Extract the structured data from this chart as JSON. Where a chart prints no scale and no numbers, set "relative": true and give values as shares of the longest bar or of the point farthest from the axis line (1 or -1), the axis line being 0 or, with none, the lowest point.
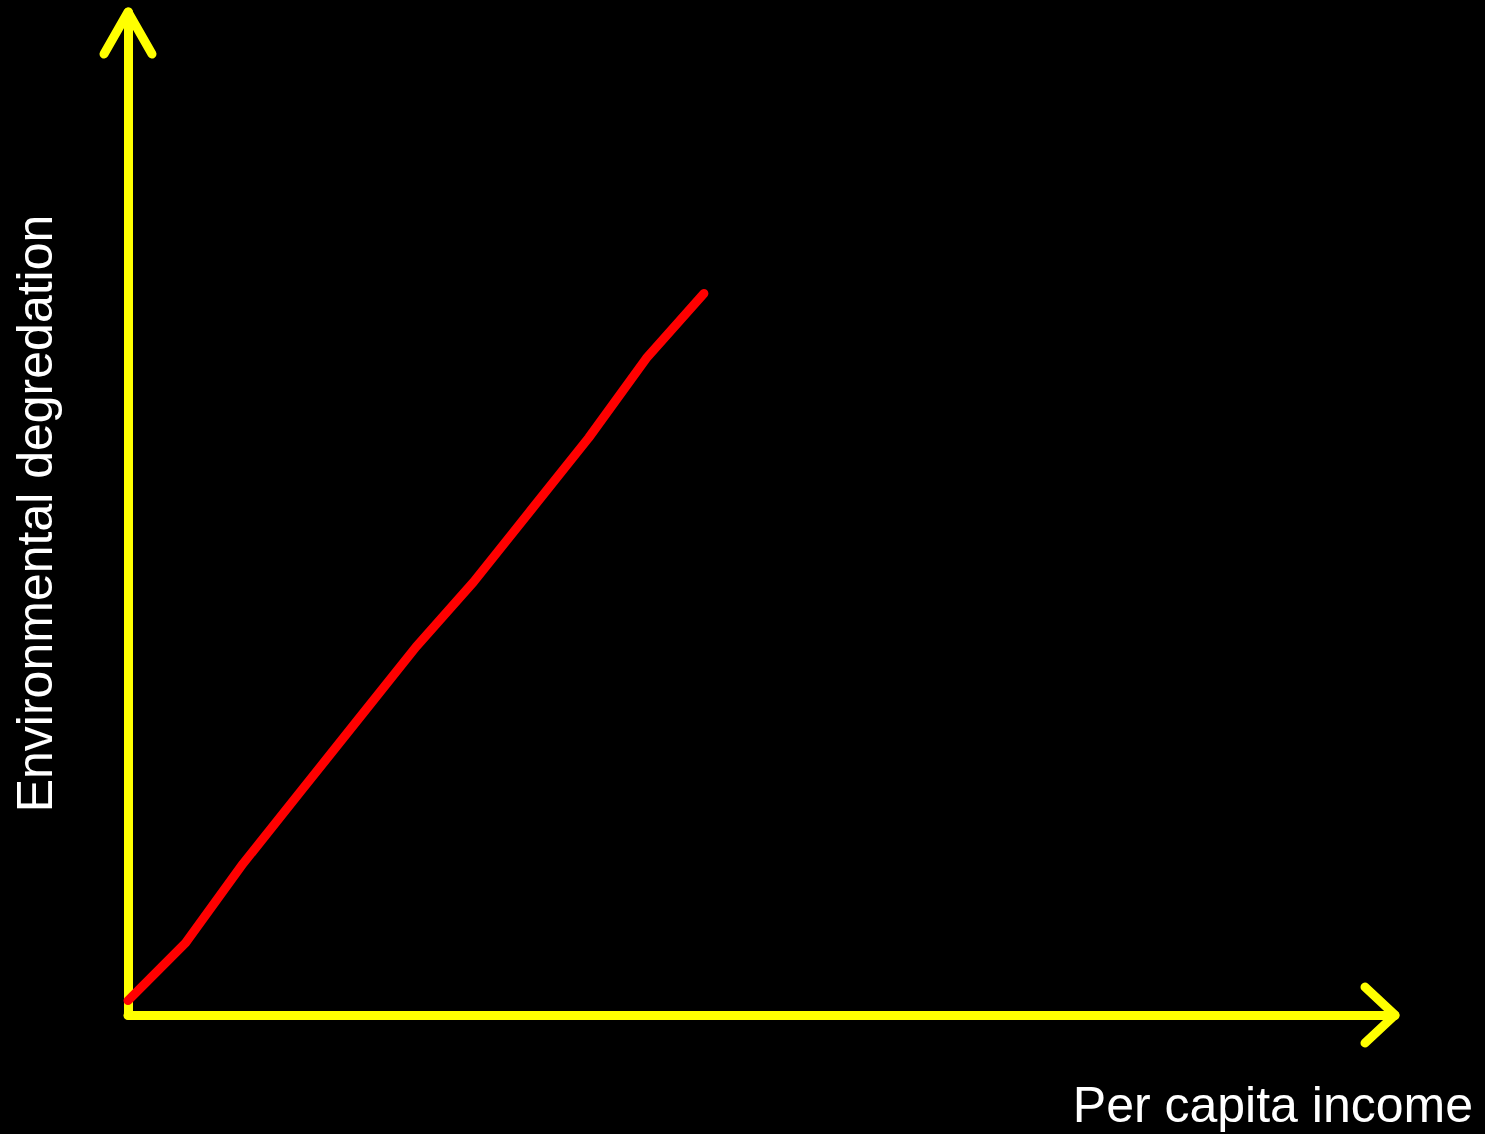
{
  "chart_data": {
    "type": "line",
    "xlabel": "Per capita income",
    "ylabel": "Environmental degredation",
    "relative": true,
    "categories": [
      null,
      null,
      null,
      null,
      null,
      null,
      null,
      null,
      null,
      null,
      null,
      null,
      null,
      null,
      null,
      null,
      null,
      null,
      null,
      null,
      null,
      null,
      null
    ],
    "series": [
      {
        "color": "#ff0000",
        "values": [
          0.02,
          0.1,
          0.21,
          0.31,
          0.41,
          0.51,
          0.6,
          0.7,
          0.8,
          0.91,
          1,
          null,
          null,
          null,
          null,
          null,
          null,
          null,
          null,
          null,
          null,
          null,
          null
        ]
      }
    ]
  }
}
